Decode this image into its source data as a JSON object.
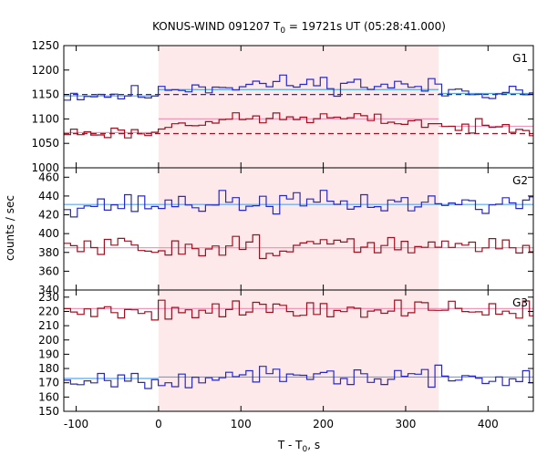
{
  "chart_data": {
    "type": "line",
    "title": {
      "prefix": "KONUS-WIND 091207 T",
      "subscript": "0",
      "suffix": " = 19721s UT (05:28:41.000)"
    },
    "xlabel": {
      "prefix": "T - T",
      "subscript": "0",
      "suffix": ", s"
    },
    "ylabel": "counts / sec",
    "xlim": [
      -115,
      455
    ],
    "xticks": [
      -100,
      0,
      100,
      200,
      300,
      400
    ],
    "shaded_interval": [
      0,
      340
    ],
    "colors": {
      "blue": "#2828c8",
      "blue_fit": "#55aaee",
      "red": "#a01020",
      "red_fit": "#ee99bb",
      "shade": "#fde8ea"
    },
    "bin_width": 8.192,
    "panels": [
      {
        "label": "G1",
        "ylim": [
          1000,
          1250
        ],
        "yticks": [
          1000,
          1050,
          1100,
          1150,
          1200,
          1250
        ],
        "blue": {
          "level": 1150,
          "amp": 14,
          "bump": 22,
          "fit_pre": 1147,
          "fit_burst": 1160,
          "fit_post": 1152,
          "background": 1150,
          "seed": 11
        },
        "red": {
          "level": 1072,
          "amp": 10,
          "bump": 30,
          "fit_pre": 1072,
          "fit_burst": 1100,
          "fit_post": 1085,
          "background": 1070,
          "seed": 23
        }
      },
      {
        "label": "G2",
        "ylim": [
          340,
          470
        ],
        "yticks": [
          340,
          360,
          380,
          400,
          420,
          440,
          460
        ],
        "blue": {
          "level": 431,
          "amp": 9,
          "bump": 2,
          "fit_pre": 431,
          "fit_burst": 431,
          "fit_post": 431,
          "background": null,
          "seed": 37
        },
        "red": {
          "level": 385,
          "amp": 9,
          "bump": 2,
          "fit_pre": 385,
          "fit_burst": 385,
          "fit_post": 385,
          "background": null,
          "seed": 51
        }
      },
      {
        "label": "G3",
        "ylim": [
          150,
          235
        ],
        "yticks": [
          150,
          160,
          170,
          180,
          190,
          200,
          210,
          220,
          230
        ],
        "blue": {
          "level": 173,
          "amp": 5,
          "bump": 1,
          "fit_pre": 173,
          "fit_burst": 174,
          "fit_post": 174,
          "background": null,
          "seed": 67
        },
        "red": {
          "level": 221,
          "amp": 6,
          "bump": 1,
          "fit_pre": 222,
          "fit_burst": 222,
          "fit_post": 222,
          "background": null,
          "seed": 79
        }
      }
    ]
  }
}
